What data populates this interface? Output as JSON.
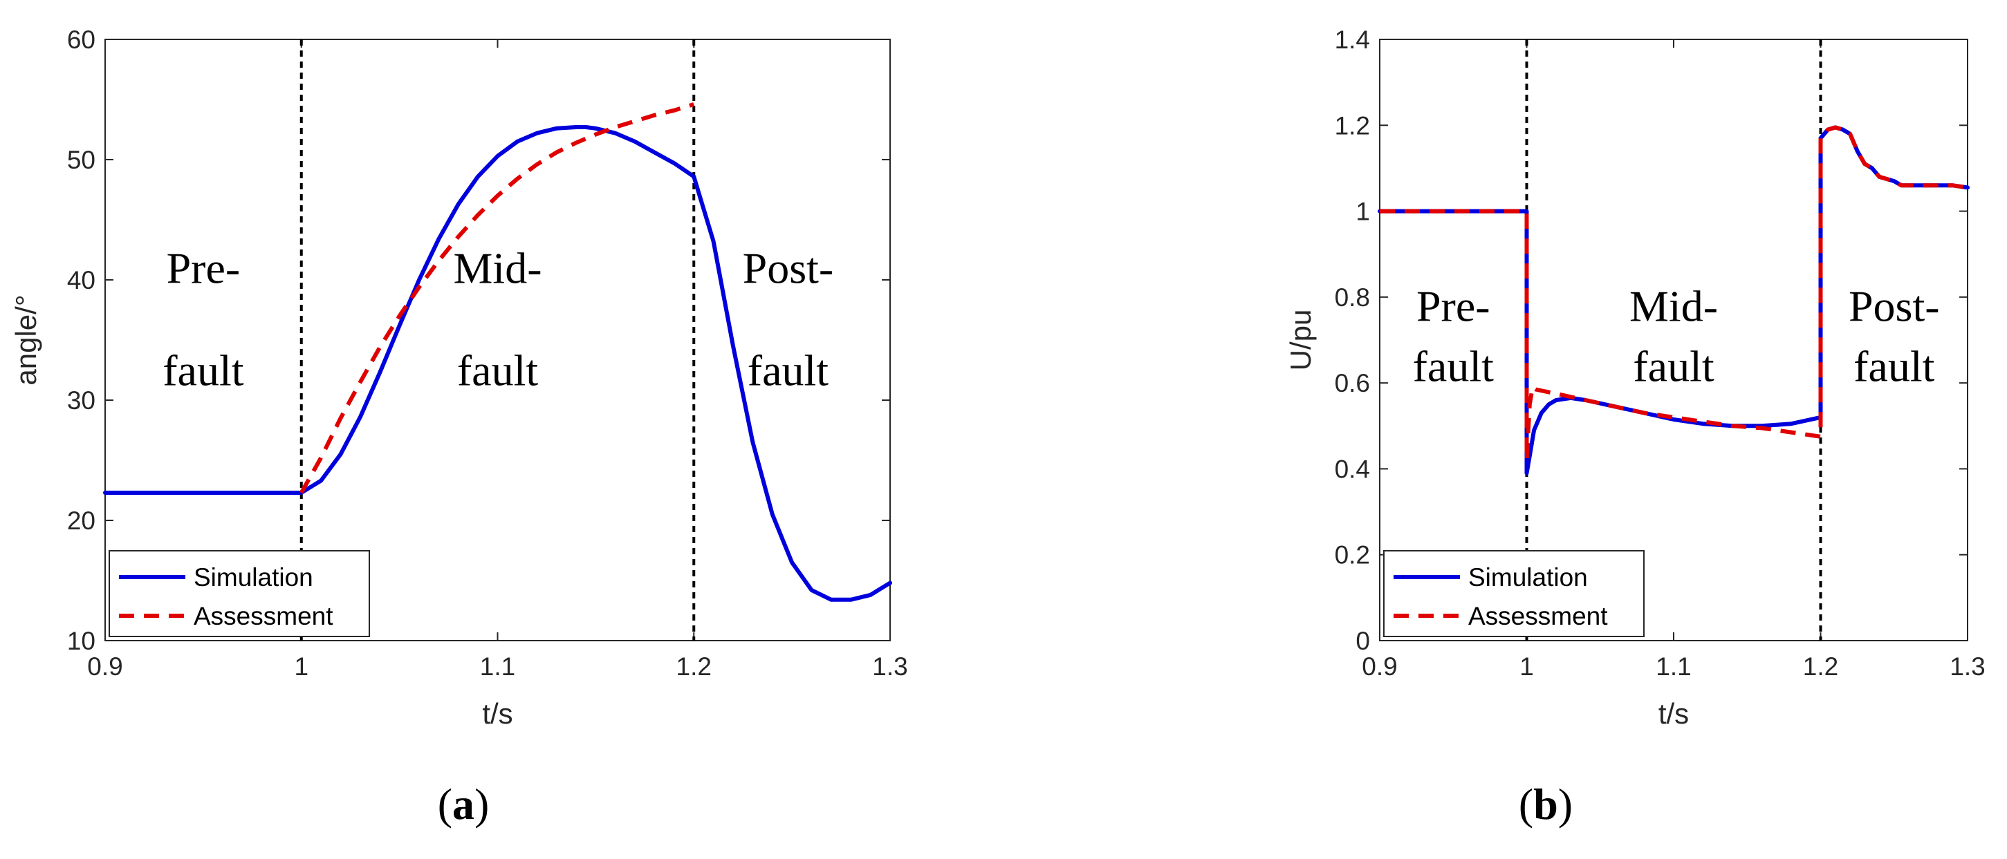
{
  "chart_data": [
    {
      "type": "line",
      "panel": "a",
      "caption": {
        "open": "(",
        "letter": "a",
        "close": ")"
      },
      "xlabel": "t/s",
      "ylabel": "angle/°",
      "xlim": [
        0.9,
        1.3
      ],
      "ylim": [
        10,
        60
      ],
      "xticks": [
        0.9,
        1,
        1.1,
        1.2,
        1.3
      ],
      "xtick_labels": [
        "0.9",
        "1",
        "1.1",
        "1.2",
        "1.3"
      ],
      "yticks": [
        10,
        20,
        30,
        40,
        50,
        60
      ],
      "ytick_labels": [
        "10",
        "20",
        "30",
        "40",
        "50",
        "60"
      ],
      "fault_lines_x": [
        1.0,
        1.2
      ],
      "regions": [
        {
          "lines": [
            "Pre-",
            "fault"
          ],
          "x": 0.95,
          "y": [
            41,
            32.5
          ]
        },
        {
          "lines": [
            "Mid-",
            "fault"
          ],
          "x": 1.1,
          "y": [
            41,
            32.5
          ]
        },
        {
          "lines": [
            "Post-",
            "fault"
          ],
          "x": 1.248,
          "y": [
            41,
            32.5
          ]
        }
      ],
      "legend": {
        "location": "lower-left",
        "entries": [
          "Simulation",
          "Assessment"
        ]
      },
      "series": [
        {
          "name": "Simulation",
          "color": "#0000dd",
          "style": "solid",
          "x": [
            0.9,
            0.95,
            1.0,
            1.01,
            1.02,
            1.03,
            1.04,
            1.05,
            1.06,
            1.07,
            1.08,
            1.09,
            1.1,
            1.11,
            1.12,
            1.13,
            1.14,
            1.145,
            1.15,
            1.16,
            1.17,
            1.18,
            1.19,
            1.2,
            1.21,
            1.22,
            1.23,
            1.24,
            1.25,
            1.26,
            1.27,
            1.28,
            1.29,
            1.3
          ],
          "y": [
            22.3,
            22.3,
            22.3,
            23.3,
            25.5,
            28.6,
            32.3,
            36.2,
            40.0,
            43.4,
            46.3,
            48.6,
            50.3,
            51.5,
            52.2,
            52.6,
            52.7,
            52.7,
            52.6,
            52.2,
            51.5,
            50.6,
            49.7,
            48.6,
            43.2,
            34.5,
            26.5,
            20.5,
            16.5,
            14.2,
            13.4,
            13.4,
            13.8,
            14.8
          ]
        },
        {
          "name": "Assessment",
          "color": "#e00000",
          "style": "dashed",
          "x": [
            1.0,
            1.01,
            1.02,
            1.03,
            1.04,
            1.05,
            1.06,
            1.07,
            1.08,
            1.09,
            1.1,
            1.11,
            1.12,
            1.13,
            1.14,
            1.15,
            1.16,
            1.17,
            1.18,
            1.19,
            1.2
          ],
          "y": [
            22.3,
            25.2,
            28.5,
            31.5,
            34.4,
            37.0,
            39.4,
            41.6,
            43.6,
            45.4,
            47.0,
            48.4,
            49.6,
            50.6,
            51.4,
            52.1,
            52.7,
            53.2,
            53.7,
            54.1,
            54.6
          ]
        }
      ]
    },
    {
      "type": "line",
      "panel": "b",
      "caption": {
        "open": "(",
        "letter": "b",
        "close": ")"
      },
      "xlabel": "t/s",
      "ylabel": "U/pu",
      "xlim": [
        0.9,
        1.3
      ],
      "ylim": [
        0,
        1.4
      ],
      "xticks": [
        0.9,
        1,
        1.1,
        1.2,
        1.3
      ],
      "xtick_labels": [
        "0.9",
        "1",
        "1.1",
        "1.2",
        "1.3"
      ],
      "yticks": [
        0,
        0.2,
        0.4,
        0.6,
        0.8,
        1,
        1.2,
        1.4
      ],
      "ytick_labels": [
        "0",
        "0.2",
        "0.4",
        "0.6",
        "0.8",
        "1",
        "1.2",
        "1.4"
      ],
      "fault_lines_x": [
        1.0,
        1.2
      ],
      "regions": [
        {
          "lines": [
            "Pre-",
            "fault"
          ],
          "x": 0.95,
          "y": [
            0.78,
            0.64
          ]
        },
        {
          "lines": [
            "Mid-",
            "fault"
          ],
          "x": 1.1,
          "y": [
            0.78,
            0.64
          ]
        },
        {
          "lines": [
            "Post-",
            "fault"
          ],
          "x": 1.25,
          "y": [
            0.78,
            0.64
          ]
        }
      ],
      "legend": {
        "location": "lower-left",
        "entries": [
          "Simulation",
          "Assessment"
        ]
      },
      "series": [
        {
          "name": "Simulation",
          "color": "#0000dd",
          "style": "solid",
          "x": [
            0.9,
            1.0,
            1.0,
            1.002,
            1.005,
            1.01,
            1.015,
            1.02,
            1.03,
            1.04,
            1.06,
            1.08,
            1.1,
            1.12,
            1.14,
            1.16,
            1.18,
            1.2,
            1.2,
            1.205,
            1.21,
            1.215,
            1.22,
            1.225,
            1.23,
            1.235,
            1.24,
            1.245,
            1.25,
            1.255,
            1.26,
            1.27,
            1.28,
            1.29,
            1.3
          ],
          "y": [
            1.0,
            1.0,
            0.39,
            0.43,
            0.49,
            0.53,
            0.55,
            0.56,
            0.565,
            0.56,
            0.545,
            0.53,
            0.515,
            0.505,
            0.5,
            0.5,
            0.505,
            0.52,
            1.17,
            1.19,
            1.195,
            1.19,
            1.18,
            1.14,
            1.11,
            1.1,
            1.08,
            1.075,
            1.07,
            1.06,
            1.06,
            1.06,
            1.06,
            1.06,
            1.055
          ]
        },
        {
          "name": "Assessment",
          "color": "#e00000",
          "style": "dashed",
          "x": [
            0.9,
            1.0,
            1.0,
            1.002,
            1.004,
            1.006,
            1.02,
            1.04,
            1.06,
            1.08,
            1.1,
            1.12,
            1.14,
            1.16,
            1.18,
            1.2,
            1.2,
            1.205,
            1.21,
            1.215,
            1.22,
            1.225,
            1.23,
            1.235,
            1.24,
            1.245,
            1.25,
            1.255,
            1.26,
            1.27,
            1.28,
            1.29,
            1.3
          ],
          "y": [
            1.0,
            1.0,
            0.42,
            0.55,
            0.59,
            0.585,
            0.575,
            0.56,
            0.545,
            0.53,
            0.52,
            0.51,
            0.5,
            0.495,
            0.485,
            0.475,
            1.17,
            1.19,
            1.195,
            1.19,
            1.18,
            1.14,
            1.11,
            1.1,
            1.08,
            1.075,
            1.07,
            1.06,
            1.06,
            1.06,
            1.06,
            1.06,
            1.055
          ]
        }
      ]
    }
  ]
}
